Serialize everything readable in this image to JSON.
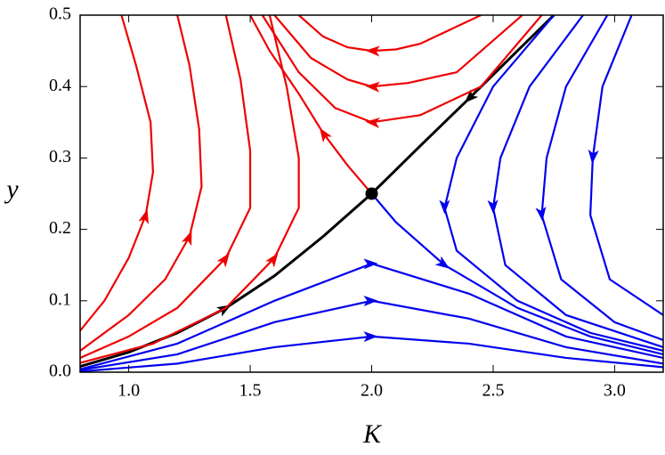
{
  "chart_data": {
    "type": "line",
    "x_label": "K",
    "y_label": "y",
    "xlim": [
      0.8,
      3.2
    ],
    "ylim": [
      0,
      0.5
    ],
    "xticks": [
      {
        "value": 1,
        "label": "1.0"
      },
      1.5,
      {
        "value": 2,
        "label": "2.0"
      },
      2.5,
      {
        "value": 3,
        "label": "3.0"
      }
    ],
    "yticks": [
      {
        "value": 0,
        "label": "0.0"
      },
      0.1,
      0.2,
      0.3,
      0.4,
      0.5
    ],
    "fixed_point": {
      "x": 2,
      "y": 0.25
    },
    "series": [
      {
        "color": "#000000",
        "x": [
          0.8,
          1.0,
          1.2,
          1.4,
          1.6,
          1.8,
          2.0
        ],
        "values": [
          0.008,
          0.028,
          0.055,
          0.09,
          0.135,
          0.19,
          0.25
        ]
      },
      {
        "color": "#000000",
        "x": [
          2.75,
          2.6,
          2.4,
          2.2,
          2.0
        ],
        "values": [
          0.5,
          0.45,
          0.383,
          0.317,
          0.25
        ]
      },
      {
        "color": "#ee0000",
        "x": [
          0.8,
          0.9,
          1.0,
          1.07,
          1.1,
          1.09,
          1.03,
          0.97
        ],
        "values": [
          0.058,
          0.1,
          0.16,
          0.22,
          0.28,
          0.35,
          0.43,
          0.5
        ]
      },
      {
        "color": "#ee0000",
        "x": [
          0.8,
          1.0,
          1.15,
          1.25,
          1.3,
          1.29,
          1.25,
          1.2
        ],
        "values": [
          0.03,
          0.08,
          0.13,
          0.19,
          0.26,
          0.34,
          0.43,
          0.5
        ]
      },
      {
        "color": "#ee0000",
        "x": [
          0.8,
          1.0,
          1.2,
          1.4,
          1.5,
          1.5,
          1.46,
          1.4
        ],
        "values": [
          0.02,
          0.05,
          0.09,
          0.16,
          0.23,
          0.31,
          0.41,
          0.5
        ]
      },
      {
        "color": "#ee0000",
        "x": [
          0.8,
          1.1,
          1.4,
          1.6,
          1.7,
          1.7,
          1.65,
          1.58
        ],
        "values": [
          0.013,
          0.04,
          0.09,
          0.16,
          0.23,
          0.3,
          0.4,
          0.5
        ]
      },
      {
        "color": "#ee0000",
        "x": [
          2.0,
          1.9,
          1.8,
          1.7,
          1.58,
          1.5
        ],
        "values": [
          0.25,
          0.29,
          0.335,
          0.39,
          0.45,
          0.5
        ]
      },
      {
        "color": "#ee0000",
        "x": [
          2.7,
          2.45,
          2.2,
          2.0,
          1.85,
          1.7,
          1.55
        ],
        "values": [
          0.5,
          0.4,
          0.36,
          0.35,
          0.37,
          0.42,
          0.5
        ]
      },
      {
        "color": "#ee0000",
        "x": [
          2.62,
          2.35,
          2.15,
          2.0,
          1.9,
          1.75,
          1.6
        ],
        "values": [
          0.5,
          0.42,
          0.405,
          0.4,
          0.41,
          0.44,
          0.5
        ]
      },
      {
        "color": "#ee0000",
        "x": [
          2.45,
          2.2,
          2.1,
          2.0,
          1.9,
          1.8,
          1.7
        ],
        "values": [
          0.5,
          0.46,
          0.452,
          0.45,
          0.455,
          0.47,
          0.5
        ]
      },
      {
        "color": "#0000ee",
        "x": [
          2.0,
          2.1,
          2.3,
          2.6,
          2.9,
          3.2
        ],
        "values": [
          0.25,
          0.21,
          0.15,
          0.09,
          0.05,
          0.025
        ]
      },
      {
        "color": "#0000ee",
        "x": [
          0.8,
          1.2,
          1.6,
          2.0,
          2.4,
          2.8,
          3.2
        ],
        "values": [
          0.004,
          0.04,
          0.1,
          0.152,
          0.11,
          0.05,
          0.02
        ]
      },
      {
        "color": "#0000ee",
        "x": [
          0.8,
          1.2,
          1.6,
          2.0,
          2.4,
          2.8,
          3.2
        ],
        "values": [
          0.003,
          0.025,
          0.07,
          0.1,
          0.075,
          0.035,
          0.012
        ]
      },
      {
        "color": "#0000ee",
        "x": [
          0.8,
          1.2,
          1.6,
          2.0,
          2.4,
          2.8,
          3.2
        ],
        "values": [
          0.001,
          0.012,
          0.035,
          0.05,
          0.04,
          0.02,
          0.007
        ]
      },
      {
        "color": "#0000ee",
        "x": [
          2.75,
          2.5,
          2.35,
          2.3,
          2.35,
          2.6,
          2.9,
          3.2
        ],
        "values": [
          0.5,
          0.4,
          0.3,
          0.23,
          0.17,
          0.1,
          0.055,
          0.03
        ]
      },
      {
        "color": "#0000ee",
        "x": [
          2.87,
          2.65,
          2.53,
          2.5,
          2.55,
          2.8,
          3.2
        ],
        "values": [
          0.5,
          0.4,
          0.3,
          0.23,
          0.15,
          0.08,
          0.035
        ]
      },
      {
        "color": "#0000ee",
        "x": [
          2.97,
          2.8,
          2.72,
          2.7,
          2.78,
          3.0,
          3.2
        ],
        "values": [
          0.5,
          0.4,
          0.3,
          0.22,
          0.13,
          0.07,
          0.045
        ]
      },
      {
        "color": "#0000ee",
        "x": [
          3.07,
          2.95,
          2.91,
          2.9,
          2.98,
          3.2
        ],
        "values": [
          0.5,
          0.4,
          0.3,
          0.22,
          0.13,
          0.08
        ]
      }
    ]
  }
}
